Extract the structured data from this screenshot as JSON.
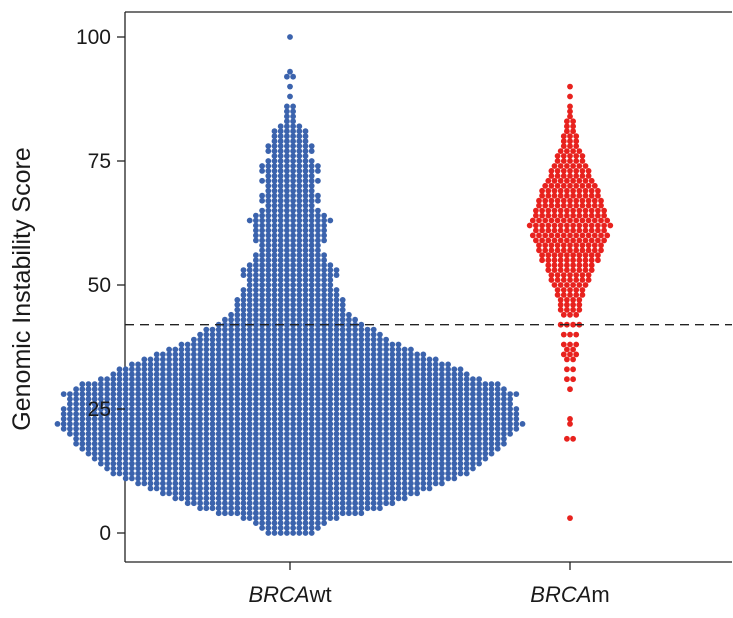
{
  "chart_data": {
    "type": "scatter",
    "subtype": "beeswarm",
    "title": "",
    "ylabel": "Genomic Instability Score",
    "xlabel": "",
    "ylim": [
      0,
      100
    ],
    "yticks": [
      0,
      25,
      50,
      75,
      100
    ],
    "ytick_labels": [
      "0",
      "25",
      "50",
      "75",
      "100"
    ],
    "reference_line": {
      "y": 42,
      "style": "dashed",
      "color": "#222222"
    },
    "categories": [
      {
        "italic": "BRCA",
        "suffix": "wt"
      },
      {
        "italic": "BRCA",
        "suffix": "m"
      }
    ],
    "series": [
      {
        "color": "#3b63ad",
        "n_points_approx": 2100,
        "median_approx": 26,
        "y_min": 0,
        "y_max": 100,
        "score_counts": [
          [
            0,
            8
          ],
          [
            1,
            10
          ],
          [
            2,
            12
          ],
          [
            3,
            16
          ],
          [
            4,
            24
          ],
          [
            5,
            30
          ],
          [
            6,
            34
          ],
          [
            7,
            38
          ],
          [
            8,
            42
          ],
          [
            9,
            46
          ],
          [
            10,
            50
          ],
          [
            11,
            54
          ],
          [
            12,
            58
          ],
          [
            13,
            60
          ],
          [
            14,
            62
          ],
          [
            15,
            64
          ],
          [
            16,
            66
          ],
          [
            17,
            68
          ],
          [
            18,
            70
          ],
          [
            19,
            70
          ],
          [
            20,
            72
          ],
          [
            21,
            74
          ],
          [
            22,
            76
          ],
          [
            23,
            74
          ],
          [
            24,
            74
          ],
          [
            25,
            74
          ],
          [
            26,
            72
          ],
          [
            27,
            72
          ],
          [
            28,
            74
          ],
          [
            29,
            70
          ],
          [
            30,
            68
          ],
          [
            31,
            62
          ],
          [
            32,
            58
          ],
          [
            33,
            56
          ],
          [
            34,
            52
          ],
          [
            35,
            48
          ],
          [
            36,
            44
          ],
          [
            37,
            40
          ],
          [
            38,
            36
          ],
          [
            39,
            32
          ],
          [
            40,
            30
          ],
          [
            41,
            28
          ],
          [
            42,
            24
          ],
          [
            43,
            22
          ],
          [
            44,
            20
          ],
          [
            45,
            18
          ],
          [
            46,
            18
          ],
          [
            47,
            18
          ],
          [
            48,
            16
          ],
          [
            49,
            16
          ],
          [
            50,
            14
          ],
          [
            51,
            14
          ],
          [
            52,
            16
          ],
          [
            53,
            16
          ],
          [
            54,
            14
          ],
          [
            55,
            12
          ],
          [
            56,
            12
          ],
          [
            57,
            10
          ],
          [
            58,
            10
          ],
          [
            59,
            12
          ],
          [
            60,
            12
          ],
          [
            61,
            12
          ],
          [
            62,
            12
          ],
          [
            63,
            14
          ],
          [
            64,
            12
          ],
          [
            65,
            10
          ],
          [
            66,
            8
          ],
          [
            67,
            10
          ],
          [
            68,
            10
          ],
          [
            69,
            8
          ],
          [
            70,
            8
          ],
          [
            71,
            10
          ],
          [
            72,
            8
          ],
          [
            73,
            10
          ],
          [
            74,
            10
          ],
          [
            75,
            8
          ],
          [
            76,
            6
          ],
          [
            77,
            8
          ],
          [
            78,
            8
          ],
          [
            79,
            6
          ],
          [
            80,
            6
          ],
          [
            81,
            6
          ],
          [
            82,
            4
          ],
          [
            83,
            2
          ],
          [
            84,
            2
          ],
          [
            85,
            2
          ],
          [
            86,
            2
          ],
          [
            88,
            1
          ],
          [
            90,
            1
          ],
          [
            92,
            2
          ],
          [
            93,
            1
          ],
          [
            100,
            1
          ]
        ]
      },
      {
        "color": "#e8221e",
        "n_points_approx": 380,
        "median_approx": 62,
        "y_min": 3,
        "y_max": 90,
        "score_counts": [
          [
            3,
            1
          ],
          [
            19,
            2
          ],
          [
            22,
            1
          ],
          [
            23,
            1
          ],
          [
            29,
            1
          ],
          [
            31,
            2
          ],
          [
            33,
            2
          ],
          [
            35,
            2
          ],
          [
            36,
            3
          ],
          [
            37,
            2
          ],
          [
            38,
            3
          ],
          [
            40,
            3
          ],
          [
            42,
            4
          ],
          [
            44,
            3
          ],
          [
            45,
            4
          ],
          [
            46,
            4
          ],
          [
            47,
            4
          ],
          [
            48,
            5
          ],
          [
            49,
            5
          ],
          [
            50,
            6
          ],
          [
            51,
            7
          ],
          [
            52,
            7
          ],
          [
            53,
            8
          ],
          [
            54,
            8
          ],
          [
            55,
            10
          ],
          [
            56,
            10
          ],
          [
            57,
            11
          ],
          [
            58,
            11
          ],
          [
            59,
            12
          ],
          [
            60,
            13
          ],
          [
            61,
            12
          ],
          [
            62,
            14
          ],
          [
            63,
            13
          ],
          [
            64,
            12
          ],
          [
            65,
            12
          ],
          [
            66,
            11
          ],
          [
            67,
            11
          ],
          [
            68,
            10
          ],
          [
            69,
            10
          ],
          [
            70,
            9
          ],
          [
            71,
            8
          ],
          [
            72,
            7
          ],
          [
            73,
            7
          ],
          [
            74,
            6
          ],
          [
            75,
            5
          ],
          [
            76,
            5
          ],
          [
            77,
            4
          ],
          [
            78,
            3
          ],
          [
            79,
            3
          ],
          [
            80,
            3
          ],
          [
            81,
            2
          ],
          [
            82,
            2
          ],
          [
            83,
            2
          ],
          [
            84,
            1
          ],
          [
            85,
            1
          ],
          [
            86,
            1
          ],
          [
            88,
            1
          ],
          [
            90,
            1
          ]
        ]
      }
    ]
  }
}
